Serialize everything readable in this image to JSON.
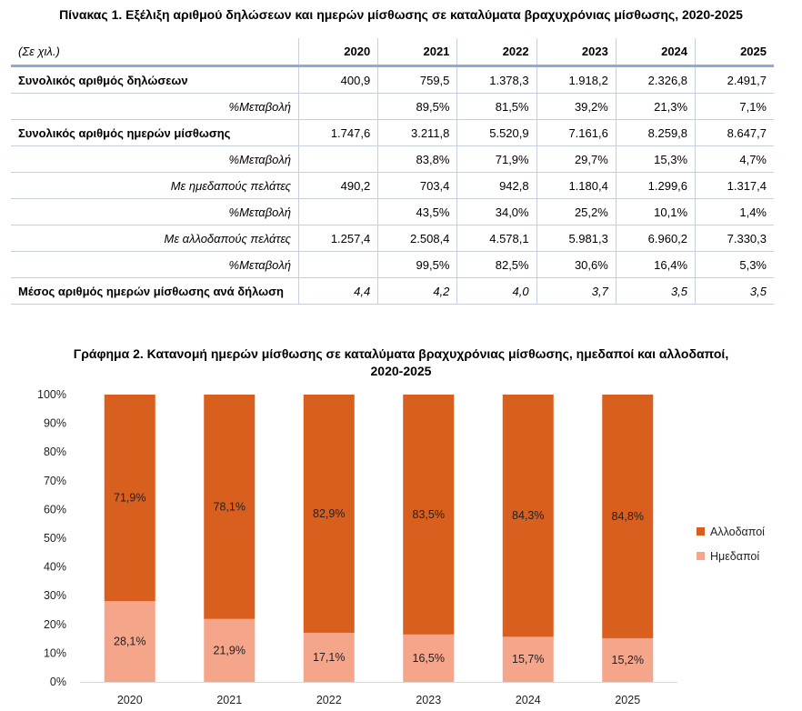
{
  "table": {
    "title": "Πίνακας 1. Εξέλιξη αριθμού δηλώσεων και ημερών μίσθωσης σε καταλύματα βραχυχρόνιας μίσθωσης, 2020-2025",
    "unit": "(Σε χιλ.)",
    "years": [
      "2020",
      "2021",
      "2022",
      "2023",
      "2024",
      "2025"
    ],
    "rows": [
      {
        "label": "Συνολικός αριθμός δηλώσεων",
        "style": "bold",
        "values": [
          "400,9",
          "759,5",
          "1.378,3",
          "1.918,2",
          "2.326,8",
          "2.491,7"
        ]
      },
      {
        "label": "%Μεταβολή",
        "style": "sub",
        "values": [
          "",
          "89,5%",
          "81,5%",
          "39,2%",
          "21,3%",
          "7,1%"
        ]
      },
      {
        "label": "Συνολικός αριθμός ημερών μίσθωσης",
        "style": "bold",
        "values": [
          "1.747,6",
          "3.211,8",
          "5.520,9",
          "7.161,6",
          "8.259,8",
          "8.647,7"
        ]
      },
      {
        "label": "%Μεταβολή",
        "style": "sub",
        "values": [
          "",
          "83,8%",
          "71,9%",
          "29,7%",
          "15,3%",
          "4,7%"
        ]
      },
      {
        "label": "Με ημεδαπούς πελάτες",
        "style": "sub",
        "values": [
          "490,2",
          "703,4",
          "942,8",
          "1.180,4",
          "1.299,6",
          "1.317,4"
        ]
      },
      {
        "label": "%Μεταβολή",
        "style": "sub",
        "values": [
          "",
          "43,5%",
          "34,0%",
          "25,2%",
          "10,1%",
          "1,4%"
        ]
      },
      {
        "label": "Με αλλοδαπούς πελάτες",
        "style": "sub",
        "values": [
          "1.257,4",
          "2.508,4",
          "4.578,1",
          "5.981,3",
          "6.960,2",
          "7.330,3"
        ]
      },
      {
        "label": "%Μεταβολή",
        "style": "sub",
        "values": [
          "",
          "99,5%",
          "82,5%",
          "30,6%",
          "16,4%",
          "5,3%"
        ]
      },
      {
        "label": "Μέσος αριθμός ημερών μίσθωσης ανά δήλωση",
        "style": "bold",
        "italicValues": true,
        "values": [
          "4,4",
          "4,2",
          "4,0",
          "3,7",
          "3,5",
          "3,5"
        ]
      }
    ]
  },
  "chart_title_line1": "Γράφημα 2. Κατανομή ημερών μίσθωσης σε καταλύματα βραχυχρόνιας μίσθωσης, ημεδαποί και αλλοδαποί,",
  "chart_title_line2": "2020-2025",
  "chart_data": {
    "type": "bar",
    "stacked": true,
    "percent": true,
    "categories": [
      "2020",
      "2021",
      "2022",
      "2023",
      "2024",
      "2025"
    ],
    "series": [
      {
        "name": "Ημεδαποί",
        "values": [
          28.1,
          21.9,
          17.1,
          16.5,
          15.7,
          15.2
        ],
        "labels": [
          "28,1%",
          "21,9%",
          "17,1%",
          "16,5%",
          "15,7%",
          "15,2%"
        ],
        "color": "#f4a58a"
      },
      {
        "name": "Αλλοδαποί",
        "values": [
          71.9,
          78.1,
          82.9,
          83.5,
          84.3,
          84.8
        ],
        "labels": [
          "71,9%",
          "78,1%",
          "82,9%",
          "83,5%",
          "84,3%",
          "84,8%"
        ],
        "color": "#d95f1e"
      }
    ],
    "yticks": [
      "0%",
      "10%",
      "20%",
      "30%",
      "40%",
      "50%",
      "60%",
      "70%",
      "80%",
      "90%",
      "100%"
    ],
    "ylim": [
      0,
      100
    ],
    "legend_position": "right",
    "grid": false
  }
}
